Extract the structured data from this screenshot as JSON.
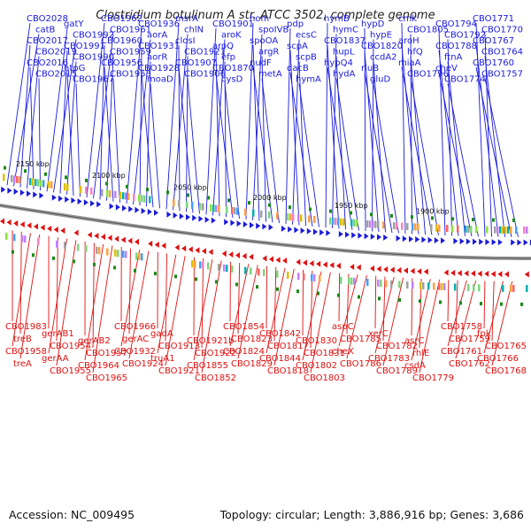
{
  "title": "Clostridium botulinum A str. ATCC 3502, complete genome",
  "footer": {
    "accession": "Accession: NC_009495",
    "summary": "Topology: circular; Length: 3,886,916 bp; Genes: 3,686"
  },
  "colors": {
    "forward_strand": "#1a1adc",
    "reverse_strand": "#e01010",
    "backbone": "#888888",
    "tick": "#1a8a1a"
  },
  "scale_labels": [
    "2150 kbp",
    "2100 kbp",
    "2050 kbp",
    "2000 kbp",
    "1950 kbp",
    "1900 kbp"
  ],
  "forward_genes": [
    "CBO2028",
    "catB",
    "CBO2017",
    "CBO2019",
    "CBO2016",
    "CBO2015",
    "gatY",
    "CBO1992",
    "CBO1991",
    "CBO1990",
    "htpG",
    "CBO1967",
    "CBO1962",
    "CBO1961",
    "CBO1960",
    "CBO1959",
    "CBO1956",
    "CBO1953",
    "CBO1936",
    "aorA",
    "CBO1931",
    "aorR",
    "CBO1928",
    "moaD",
    "msrA",
    "chlN",
    "closI",
    "CBO1921",
    "CBO1907",
    "CBO1906",
    "CBO1901",
    "aroK",
    "aroQ",
    "efp",
    "CBO1870",
    "cysD",
    "hom",
    "spoIVB",
    "spoOA",
    "argR",
    "nudF",
    "metA",
    "pdp",
    "ecsC",
    "scpA",
    "scpB",
    "dacB",
    "hymA",
    "hymB",
    "hymC",
    "CBO1837",
    "hupL",
    "hypQ4",
    "hydA",
    "hypD",
    "hypE",
    "CBO1820",
    "ccdA2",
    "rluB",
    "gluD",
    "cmk",
    "CBO1805",
    "aroH",
    "hfQ",
    "miaA",
    "CBO1796",
    "CBO1794",
    "CBO1792",
    "CBO1788",
    "ftnA",
    "cheV",
    "CBO1774",
    "CBO1771",
    "CBO1770",
    "CBO1767",
    "CBO1764",
    "CBO1760",
    "CBO1757"
  ],
  "reverse_genes": [
    "CBO1983",
    "treB",
    "CBO1958",
    "treA",
    "gerAB1",
    "CBO1954",
    "gerAA",
    "CBO1955",
    "gerAB2",
    "CBO1957",
    "CBO1964",
    "CBO1965",
    "CBO1966",
    "gerAC",
    "CBO1932",
    "CBO1924",
    "gadA",
    "CBO1913",
    "truA1",
    "CBO1921",
    "CBO1921b",
    "CBO1922",
    "CBO1855",
    "CBO1852",
    "CBO1854",
    "CBO1823",
    "CBO1824",
    "CBO1829",
    "CBO1842",
    "CBO1817",
    "CBO1844",
    "CBO1818",
    "CBO1830",
    "CBO1831",
    "CBO1802",
    "CBO1803",
    "aspC",
    "CBO1785",
    "cheX",
    "CBO1786",
    "xerC",
    "CBO1782",
    "CBO1783",
    "CBO1789",
    "asrC",
    "rhlE",
    "csdA",
    "CBO1779",
    "CBO1758",
    "CBO1759",
    "CBO1761",
    "CBO1762",
    "fpk",
    "CBO1765",
    "CBO1766",
    "CBO1768"
  ]
}
